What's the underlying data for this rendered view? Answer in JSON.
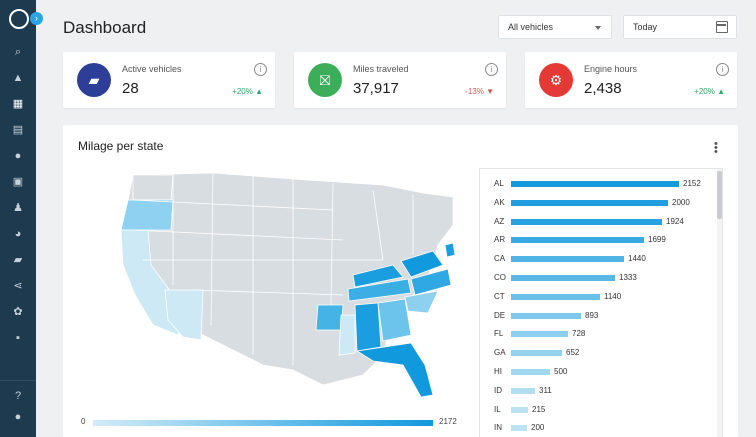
{
  "header": {
    "title": "Dashboard",
    "vehicle_select": "All vehicles",
    "date_select": "Today"
  },
  "sidebar": {
    "icons": [
      "search-icon",
      "bell-icon",
      "garage-icon",
      "map-icon",
      "pin-icon",
      "report-icon",
      "users-icon",
      "pie-icon",
      "truck-icon",
      "share-icon",
      "gear-icon",
      "feedback-icon",
      "help-icon",
      "account-icon"
    ]
  },
  "kpis": [
    {
      "label": "Active vehicles",
      "value": "28",
      "change": "+20%",
      "direction": "up",
      "color": "#2d3e99",
      "icon": "truck-icon"
    },
    {
      "label": "Miles traveled",
      "value": "37,917",
      "change": "-13%",
      "direction": "down",
      "color": "#3cae5a",
      "icon": "road-icon"
    },
    {
      "label": "Engine hours",
      "value": "2,438",
      "change": "+20%",
      "direction": "up",
      "color": "#e53935",
      "icon": "engine-icon"
    }
  ],
  "panel": {
    "title": "Milage per state",
    "legend_min": "0",
    "legend_max": "2172"
  },
  "chart_data": {
    "type": "bar",
    "categories": [
      "AL",
      "AK",
      "AZ",
      "AR",
      "CA",
      "CO",
      "CT",
      "DE",
      "FL",
      "GA",
      "HI",
      "ID",
      "IL",
      "IN"
    ],
    "values": [
      2152,
      2000,
      1924,
      1699,
      1440,
      1333,
      1140,
      893,
      728,
      652,
      500,
      311,
      215,
      200
    ],
    "value_labels": [
      "2152",
      "2000",
      "1924",
      "1699",
      "1440",
      "1333",
      "1140",
      "893",
      "728",
      "652",
      "500",
      "311",
      "215",
      "200"
    ],
    "xlim": [
      0,
      2172
    ],
    "colors": {
      "high": "#1099dd",
      "low": "#d3ecf8"
    }
  }
}
